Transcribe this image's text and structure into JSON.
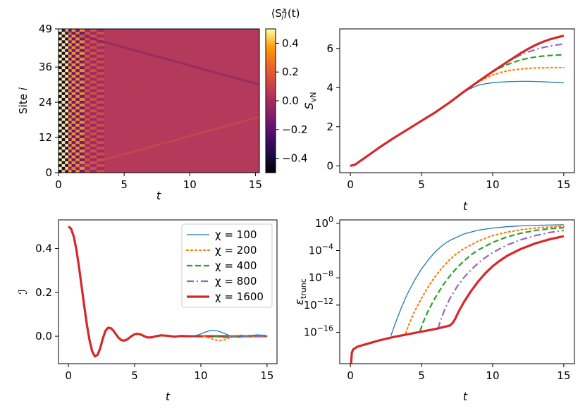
{
  "figure": {
    "panels": [
      "heatmap",
      "entropy",
      "imbalance",
      "truncation"
    ]
  },
  "chart_data": [
    {
      "type": "heatmap",
      "title": "⟨S_i^z⟩(t)",
      "title_parts": [
        "⟨S",
        "z",
        "i",
        "⟩(t)"
      ],
      "xlabel": "t",
      "ylabel": "Site i",
      "ylabel_parts": [
        "Site ",
        "i"
      ],
      "xlim": [
        0,
        15.3
      ],
      "ylim": [
        0,
        49
      ],
      "xticks": [
        0,
        5,
        10,
        15
      ],
      "yticks": [
        0,
        12,
        24,
        36,
        49
      ],
      "colorbar": {
        "range": [
          -0.5,
          0.5
        ],
        "ticks": [
          0.4,
          0.2,
          0.0,
          -0.2,
          -0.4
        ],
        "tick_labels": [
          "0.4",
          "0.2",
          "0.0",
          "−0.2",
          "−0.4"
        ],
        "colormap": "inferno"
      },
      "description": "Neel initial state: alternating +0.5/-0.5 staggered magnetization at t=0 decaying to ~0 with light-cone fronts from both edges"
    },
    {
      "type": "line",
      "xlabel": "t",
      "ylabel": "S_vN",
      "ylabel_parts": [
        "S",
        "vN"
      ],
      "xlim": [
        -0.75,
        15.75
      ],
      "ylim": [
        -0.35,
        7.0
      ],
      "xticks": [
        0,
        5,
        10,
        15
      ],
      "yticks": [
        0,
        2,
        4,
        6
      ],
      "series": [
        {
          "name": "χ = 100",
          "color": "#1f77b4",
          "style": "solid",
          "width": 1.3,
          "x": [
            0,
            0.3,
            1,
            2,
            3,
            4,
            5,
            6,
            7,
            7.5,
            8,
            8.5,
            9,
            9.5,
            10,
            10.5,
            11,
            11.5,
            12,
            12.5,
            13,
            13.5,
            14,
            14.5,
            15
          ],
          "y": [
            0,
            0.05,
            0.4,
            0.92,
            1.4,
            1.85,
            2.3,
            2.75,
            3.25,
            3.5,
            3.78,
            3.97,
            4.12,
            4.2,
            4.25,
            4.28,
            4.3,
            4.31,
            4.32,
            4.32,
            4.31,
            4.3,
            4.28,
            4.26,
            4.24
          ]
        },
        {
          "name": "χ = 200",
          "color": "#ff7f0e",
          "style": "dotted",
          "width": 2.2,
          "x": [
            0,
            0.3,
            1,
            2,
            3,
            4,
            5,
            6,
            7,
            8,
            8.5,
            9,
            9.5,
            10,
            10.5,
            11,
            11.5,
            12,
            12.5,
            13,
            13.5,
            14,
            14.5,
            15
          ],
          "y": [
            0,
            0.05,
            0.4,
            0.92,
            1.4,
            1.85,
            2.3,
            2.75,
            3.25,
            3.8,
            4.05,
            4.28,
            4.48,
            4.64,
            4.76,
            4.85,
            4.91,
            4.95,
            4.98,
            5.0,
            5.01,
            5.02,
            5.02,
            5.02
          ]
        },
        {
          "name": "χ = 400",
          "color": "#2ca02c",
          "style": "dashed",
          "width": 2.2,
          "x": [
            0,
            0.3,
            1,
            2,
            3,
            4,
            5,
            6,
            7,
            8,
            9,
            9.5,
            10,
            10.5,
            11,
            11.5,
            12,
            12.5,
            13,
            13.5,
            14,
            14.5,
            15
          ],
          "y": [
            0,
            0.05,
            0.4,
            0.92,
            1.4,
            1.85,
            2.3,
            2.75,
            3.25,
            3.8,
            4.32,
            4.58,
            4.8,
            5.0,
            5.17,
            5.3,
            5.42,
            5.5,
            5.56,
            5.61,
            5.64,
            5.66,
            5.67
          ]
        },
        {
          "name": "χ = 800",
          "color": "#9467bd",
          "style": "dashdot",
          "width": 2.2,
          "x": [
            0,
            0.3,
            1,
            2,
            3,
            4,
            5,
            6,
            7,
            8,
            9,
            10,
            10.5,
            11,
            11.5,
            12,
            12.5,
            13,
            13.5,
            14,
            14.5,
            15
          ],
          "y": [
            0,
            0.05,
            0.4,
            0.92,
            1.4,
            1.85,
            2.3,
            2.75,
            3.25,
            3.8,
            4.32,
            4.82,
            5.08,
            5.3,
            5.5,
            5.68,
            5.82,
            5.94,
            6.04,
            6.12,
            6.18,
            6.23
          ]
        },
        {
          "name": "χ = 1600",
          "color": "#d62728",
          "style": "solid",
          "width": 3.2,
          "x": [
            0,
            0.3,
            1,
            2,
            3,
            4,
            5,
            6,
            7,
            8,
            9,
            10,
            11,
            12,
            12.5,
            13,
            13.5,
            14,
            14.5,
            15
          ],
          "y": [
            0,
            0.05,
            0.4,
            0.92,
            1.4,
            1.85,
            2.3,
            2.75,
            3.25,
            3.8,
            4.32,
            4.82,
            5.3,
            5.77,
            5.98,
            6.17,
            6.33,
            6.46,
            6.56,
            6.65
          ]
        }
      ]
    },
    {
      "type": "line",
      "xlabel": "t",
      "ylabel": "ℐ",
      "xlim": [
        -0.75,
        15.75
      ],
      "ylim": [
        -0.125,
        0.53
      ],
      "xticks": [
        0,
        5,
        10,
        15
      ],
      "yticks": [
        0.0,
        0.2,
        0.4
      ],
      "legend": {
        "position": "top-right",
        "entries": [
          "χ = 100",
          "χ = 200",
          "χ = 400",
          "χ = 800",
          "χ = 1600"
        ]
      },
      "series": [
        {
          "name": "χ = 100",
          "color": "#1f77b4",
          "style": "solid",
          "width": 1.3,
          "x": [
            9.3,
            9.8,
            10.3,
            10.7,
            11.0,
            11.3,
            11.8,
            12.3,
            12.8,
            13.3,
            13.8,
            14.3,
            14.8,
            15.0
          ],
          "y": [
            0.0,
            0.006,
            0.018,
            0.026,
            0.027,
            0.024,
            0.012,
            0.0,
            -0.005,
            -0.002,
            0.004,
            0.006,
            0.004,
            0.002
          ]
        },
        {
          "name": "χ = 200",
          "color": "#ff7f0e",
          "style": "dotted",
          "width": 2.2,
          "x": [
            10.2,
            10.6,
            11.0,
            11.4,
            11.8,
            12.2,
            12.6,
            13.0,
            13.5,
            14.0,
            14.5,
            15.0
          ],
          "y": [
            0.0,
            -0.007,
            -0.016,
            -0.02,
            -0.016,
            -0.006,
            0.002,
            0.004,
            0.002,
            0.0,
            0.0,
            0.0
          ]
        },
        {
          "name": "χ = 400",
          "color": "#2ca02c",
          "style": "dashed",
          "width": 2.2,
          "x": [
            11.0,
            11.5,
            12.0,
            12.5,
            13.0,
            13.5,
            14.0,
            14.5,
            15.0
          ],
          "y": [
            0.0,
            -0.004,
            -0.005,
            -0.002,
            0.002,
            0.003,
            0.001,
            0.0,
            0.0
          ]
        },
        {
          "name": "χ = 800",
          "color": "#9467bd",
          "style": "dashdot",
          "width": 2.2,
          "x": [
            12.0,
            12.5,
            13.0,
            13.5,
            14.0,
            14.5,
            15.0
          ],
          "y": [
            0.0,
            0.002,
            0.002,
            0.0,
            -0.002,
            0.0,
            0.0
          ]
        },
        {
          "name": "χ = 1600",
          "color": "#d62728",
          "style": "solid",
          "width": 3.2,
          "x": [
            0,
            0.2,
            0.4,
            0.6,
            0.8,
            1.0,
            1.2,
            1.4,
            1.6,
            1.8,
            2.0,
            2.2,
            2.4,
            2.6,
            2.8,
            3.0,
            3.2,
            3.4,
            3.6,
            3.8,
            4.0,
            4.2,
            4.4,
            4.6,
            4.8,
            5.0,
            5.2,
            5.4,
            5.6,
            5.8,
            6.0,
            6.3,
            6.6,
            7.0,
            7.5,
            8.0,
            8.5,
            9.0,
            9.5,
            10.0,
            11.0,
            12.0,
            13.0,
            14.0,
            15.0
          ],
          "y": [
            0.5,
            0.49,
            0.455,
            0.395,
            0.315,
            0.225,
            0.135,
            0.05,
            -0.02,
            -0.07,
            -0.092,
            -0.085,
            -0.055,
            -0.01,
            0.025,
            0.039,
            0.037,
            0.025,
            0.008,
            -0.008,
            -0.018,
            -0.02,
            -0.016,
            -0.007,
            0.002,
            0.009,
            0.011,
            0.009,
            0.004,
            -0.002,
            -0.006,
            -0.005,
            0.0,
            0.004,
            0.002,
            -0.002,
            0.001,
            0.0,
            0.0,
            0.0,
            0.0,
            0.0,
            0.0,
            0.0,
            0.0
          ]
        }
      ]
    },
    {
      "type": "line",
      "xlabel": "t",
      "ylabel": "ε_trunc",
      "ylabel_parts": [
        "ε",
        "trunc"
      ],
      "yscale": "log",
      "xlim": [
        -0.75,
        15.75
      ],
      "ylim_log10": [
        -20.6,
        0.5
      ],
      "xticks": [
        0,
        5,
        10,
        15
      ],
      "yticks_log10": [
        0,
        -4,
        -8,
        -12,
        -16
      ],
      "series": [
        {
          "name": "χ = 100",
          "color": "#1f77b4",
          "style": "solid",
          "width": 1.3,
          "x": [
            2.85,
            3.0,
            3.3,
            3.6,
            4.0,
            4.5,
            5.0,
            5.5,
            6.0,
            6.5,
            7.0,
            8.0,
            9.0,
            10.0,
            11.0,
            12.0,
            13.0,
            14.0,
            15.0
          ],
          "y_log10": [
            -16.5,
            -15.6,
            -13.9,
            -12.3,
            -10.4,
            -8.4,
            -6.7,
            -5.3,
            -4.1,
            -3.2,
            -2.5,
            -1.55,
            -1.0,
            -0.7,
            -0.5,
            -0.38,
            -0.3,
            -0.25,
            -0.22
          ]
        },
        {
          "name": "χ = 200",
          "color": "#ff7f0e",
          "style": "dotted",
          "width": 2.2,
          "x": [
            3.9,
            4.1,
            4.5,
            5.0,
            5.5,
            6.0,
            6.5,
            7.0,
            7.5,
            8.0,
            9.0,
            10.0,
            11.0,
            12.0,
            13.0,
            14.0,
            15.0
          ],
          "y_log10": [
            -16.1,
            -14.9,
            -13.0,
            -11.0,
            -9.2,
            -7.7,
            -6.4,
            -5.3,
            -4.4,
            -3.7,
            -2.6,
            -1.8,
            -1.3,
            -0.95,
            -0.7,
            -0.55,
            -0.45
          ]
        },
        {
          "name": "χ = 400",
          "color": "#2ca02c",
          "style": "dashed",
          "width": 2.2,
          "x": [
            4.9,
            5.1,
            5.5,
            6.0,
            6.5,
            7.0,
            7.5,
            8.0,
            8.5,
            9.0,
            10.0,
            11.0,
            12.0,
            13.0,
            14.0,
            15.0
          ],
          "y_log10": [
            -15.8,
            -14.6,
            -12.7,
            -10.8,
            -9.1,
            -7.7,
            -6.5,
            -5.5,
            -4.6,
            -3.9,
            -2.8,
            -2.0,
            -1.45,
            -1.05,
            -0.8,
            -0.65
          ]
        },
        {
          "name": "χ = 800",
          "color": "#9467bd",
          "style": "dashdot",
          "width": 2.2,
          "x": [
            6.15,
            6.3,
            6.6,
            7.0,
            7.5,
            8.0,
            8.5,
            9.0,
            9.5,
            10.0,
            11.0,
            12.0,
            13.0,
            14.0,
            15.0
          ],
          "y_log10": [
            -15.5,
            -14.5,
            -12.8,
            -11.0,
            -9.3,
            -7.9,
            -6.8,
            -5.8,
            -5.0,
            -4.3,
            -3.2,
            -2.4,
            -1.8,
            -1.35,
            -1.05
          ]
        },
        {
          "name": "χ = 1600",
          "color": "#d62728",
          "style": "solid",
          "width": 3.2,
          "x": [
            0.05,
            0.1,
            0.2,
            0.5,
            1.0,
            1.5,
            2.0,
            3.0,
            4.0,
            5.0,
            6.0,
            7.0,
            7.2,
            7.35,
            7.6,
            8.0,
            8.5,
            9.0,
            9.5,
            10.0,
            10.5,
            11.0,
            12.0,
            13.0,
            14.0,
            15.0
          ],
          "y_log10": [
            -20.6,
            -19.0,
            -18.5,
            -18.1,
            -17.8,
            -17.5,
            -17.2,
            -16.7,
            -16.3,
            -15.9,
            -15.5,
            -15.0,
            -14.6,
            -14.1,
            -13.0,
            -11.5,
            -9.9,
            -8.5,
            -7.3,
            -6.3,
            -5.5,
            -4.8,
            -3.75,
            -2.95,
            -2.35,
            -1.9
          ]
        }
      ]
    }
  ]
}
